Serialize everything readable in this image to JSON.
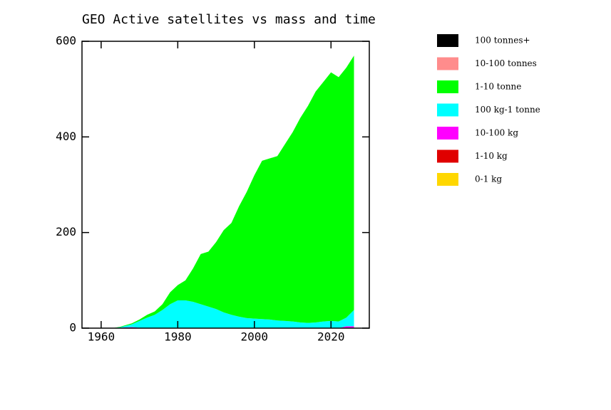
{
  "chart_data": {
    "type": "stacked-area",
    "title": "GEO Active satellites vs mass and time",
    "x": [
      1963,
      1965,
      1968,
      1970,
      1972,
      1974,
      1976,
      1978,
      1980,
      1982,
      1984,
      1986,
      1988,
      1990,
      1992,
      1994,
      1996,
      1998,
      2000,
      2002,
      2004,
      2006,
      2008,
      2010,
      2012,
      2014,
      2016,
      2018,
      2020,
      2022,
      2024,
      2026
    ],
    "series": [
      {
        "name": "0-1 kg",
        "color": "#ffd700",
        "values": [
          0,
          0,
          0,
          0,
          0,
          0,
          0,
          0,
          0,
          0,
          0,
          0,
          0,
          0,
          0,
          0,
          0,
          0,
          0,
          0,
          0,
          0,
          0,
          0,
          0,
          0,
          0,
          0,
          0,
          0,
          0,
          0
        ]
      },
      {
        "name": "1-10 kg",
        "color": "#e00000",
        "values": [
          0,
          0,
          0,
          0,
          0,
          0,
          0,
          0,
          0,
          0,
          0,
          0,
          0,
          0,
          0,
          0,
          0,
          0,
          0,
          0,
          0,
          0,
          0,
          0,
          0,
          0,
          0,
          0,
          0,
          0,
          0,
          0
        ]
      },
      {
        "name": "10-100 kg",
        "color": "#ff00ff",
        "values": [
          0,
          1,
          2,
          1,
          0,
          0,
          0,
          0,
          0,
          0,
          0,
          0,
          0,
          0,
          0,
          0,
          0,
          0,
          0,
          0,
          0,
          0,
          0,
          0,
          0,
          0,
          0,
          0,
          0,
          0,
          4,
          4
        ]
      },
      {
        "name": "100 kg-1 tonne",
        "color": "#00ffff",
        "values": [
          0,
          1,
          6,
          14,
          22,
          28,
          38,
          50,
          58,
          58,
          55,
          50,
          45,
          40,
          33,
          28,
          24,
          21,
          20,
          19,
          18,
          16,
          15,
          14,
          12,
          11,
          12,
          14,
          15,
          14,
          18,
          34
        ]
      },
      {
        "name": "1-10 tonne",
        "color": "#00ff00",
        "values": [
          0,
          1,
          2,
          3,
          6,
          7,
          12,
          25,
          32,
          42,
          70,
          105,
          115,
          140,
          172,
          192,
          231,
          264,
          300,
          331,
          337,
          344,
          370,
          396,
          428,
          454,
          483,
          501,
          520,
          511,
          523,
          532
        ]
      },
      {
        "name": "10-100 tonnes",
        "color": "#ff8c8c",
        "values": [
          0,
          0,
          0,
          0,
          0,
          0,
          0,
          0,
          0,
          0,
          0,
          0,
          0,
          0,
          0,
          0,
          0,
          0,
          0,
          0,
          0,
          0,
          0,
          0,
          0,
          0,
          0,
          0,
          0,
          0,
          0,
          0
        ]
      },
      {
        "name": "100 tonnes+",
        "color": "#000000",
        "values": [
          0,
          0,
          0,
          0,
          0,
          0,
          0,
          0,
          0,
          0,
          0,
          0,
          0,
          0,
          0,
          0,
          0,
          0,
          0,
          0,
          0,
          0,
          0,
          0,
          0,
          0,
          0,
          0,
          0,
          0,
          0,
          0
        ]
      }
    ],
    "xlim": [
      1955,
      2030
    ],
    "xticks": [
      1960,
      1980,
      2000,
      2020
    ],
    "ylim": [
      0,
      600
    ],
    "yticks": [
      0,
      200,
      400,
      600
    ]
  }
}
